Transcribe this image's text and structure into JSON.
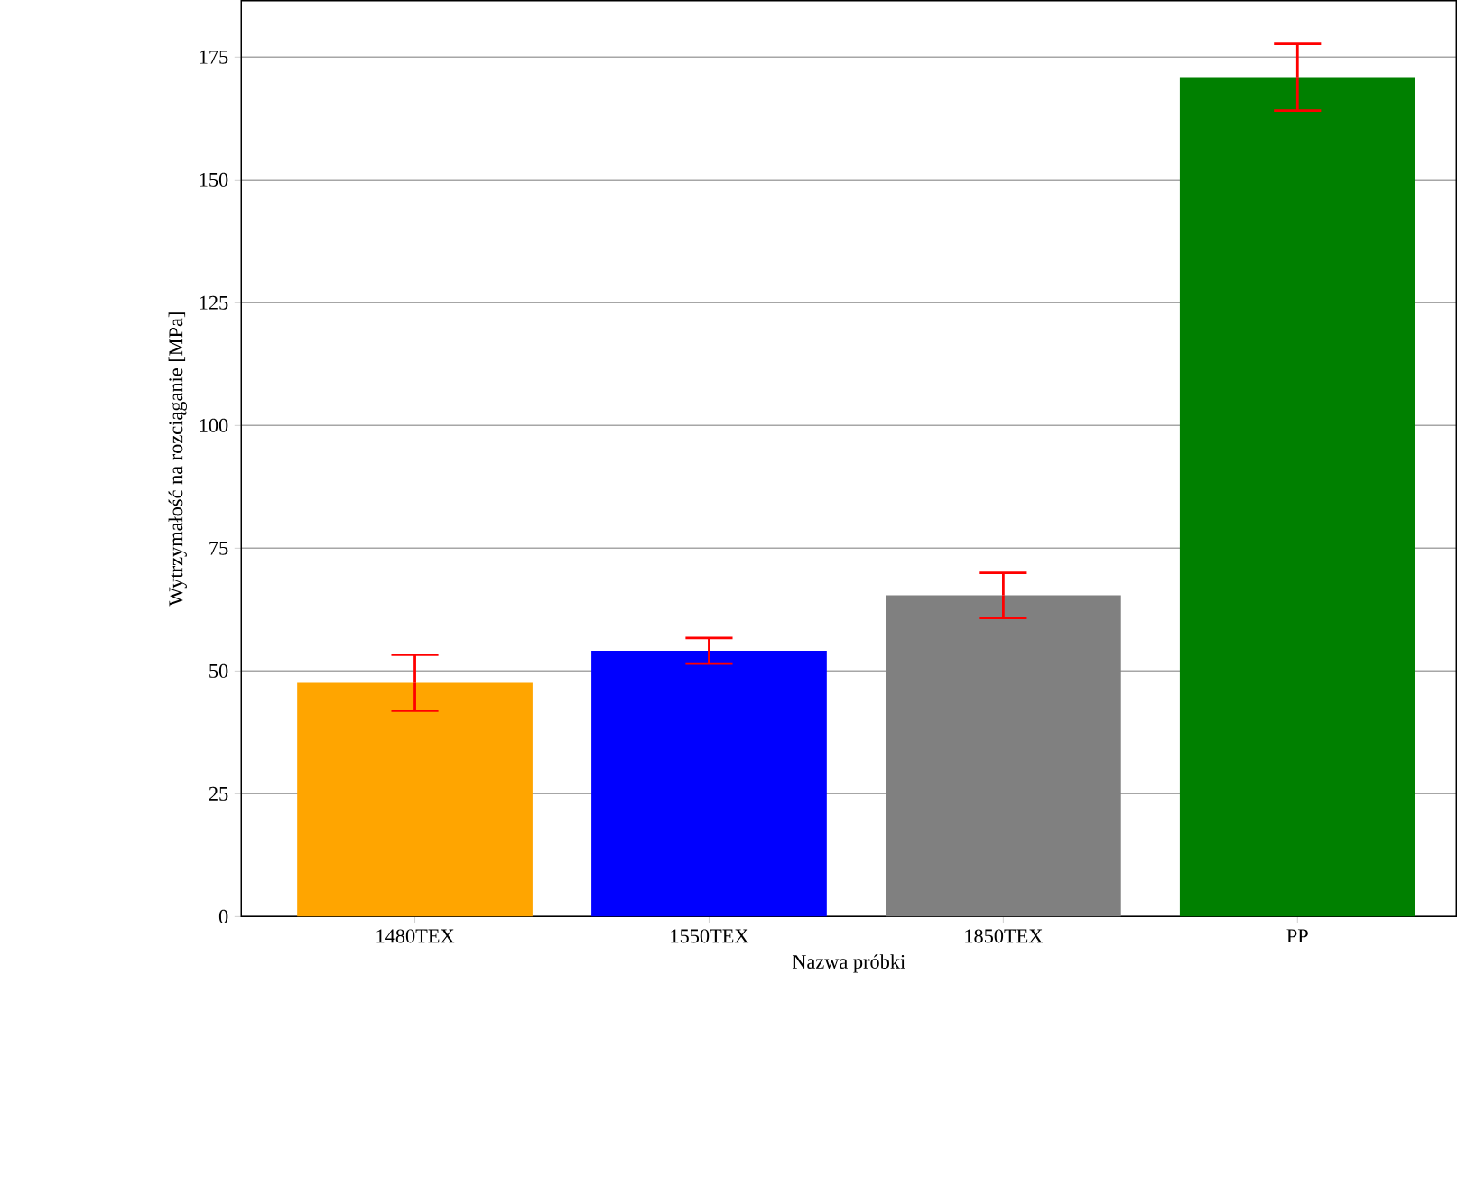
{
  "chart_data": {
    "type": "bar",
    "xlabel": "Nazwa próbki",
    "ylabel": "Wytrzymałość na rozciąganie [MPa]",
    "categories": [
      "1480TEX",
      "1550TEX",
      "1850TEX",
      "PP"
    ],
    "values": [
      47.6,
      54.1,
      65.4,
      170.9
    ],
    "errors": [
      5.7,
      2.6,
      4.6,
      6.8
    ],
    "colors": [
      "#ffa500",
      "#0000ff",
      "#808080",
      "#008000"
    ],
    "ylim": [
      0,
      186.5
    ],
    "yticks": [
      0,
      25,
      50,
      75,
      100,
      125,
      150,
      175
    ],
    "grid": "y"
  }
}
